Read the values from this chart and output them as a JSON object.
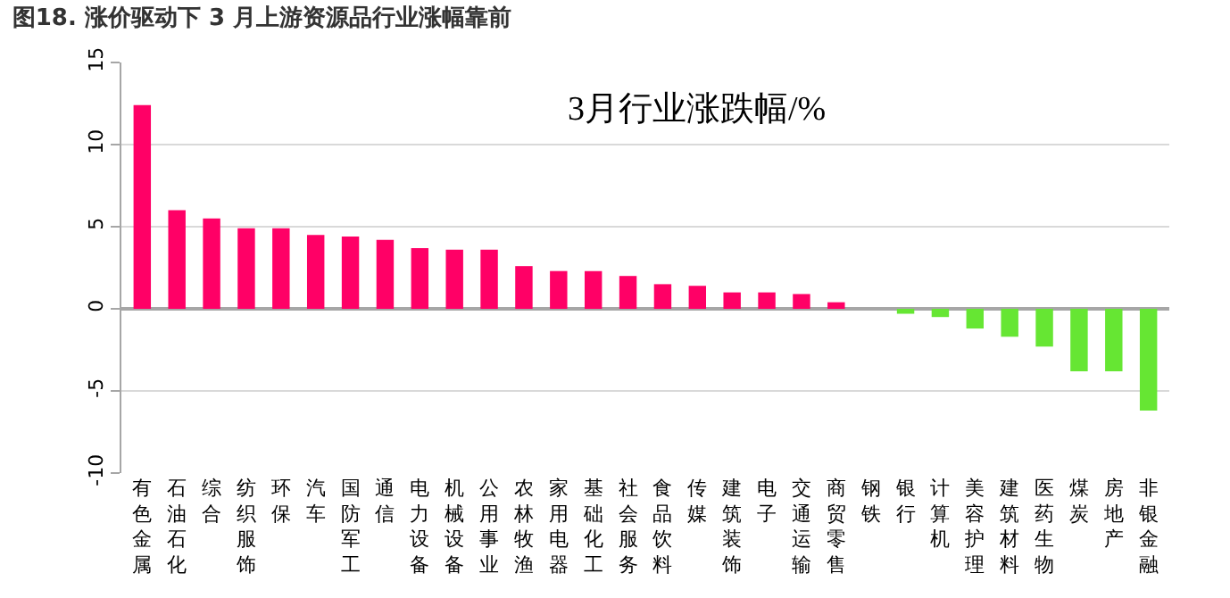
{
  "chart_data": {
    "type": "bar",
    "title": "图18. 涨价驱动下 3 月上游资源品行业涨幅靠前",
    "annotations": [
      "3月行业涨跌幅/%"
    ],
    "categories": [
      "有色金属",
      "石油石化",
      "综合",
      "纺织服饰",
      "环保",
      "汽车",
      "国防军工",
      "通信",
      "电力设备",
      "机械设备",
      "公用事业",
      "农林牧渔",
      "家用电器",
      "基础化工",
      "社会服务",
      "食品饮料",
      "传媒",
      "建筑装饰",
      "电子",
      "交通运输",
      "商贸零售",
      "钢铁",
      "银行",
      "计算机",
      "美容护理",
      "建筑材料",
      "医药生物",
      "煤炭",
      "房地产",
      "非银金融"
    ],
    "values": [
      12.4,
      6.0,
      5.5,
      4.9,
      4.9,
      4.5,
      4.4,
      4.2,
      3.7,
      3.6,
      3.6,
      2.6,
      2.3,
      2.3,
      2.0,
      1.5,
      1.4,
      1.0,
      1.0,
      0.9,
      0.4,
      0,
      -0.3,
      -0.5,
      -1.2,
      -1.7,
      -2.3,
      -3.8,
      -3.8,
      -6.2
    ],
    "colors": [
      "#ff0066",
      "#ff0066",
      "#ff0066",
      "#ff0066",
      "#ff0066",
      "#ff0066",
      "#ff0066",
      "#ff0066",
      "#ff0066",
      "#ff0066",
      "#ff0066",
      "#ff0066",
      "#ff0066",
      "#ff0066",
      "#ff0066",
      "#ff0066",
      "#ff0066",
      "#ff0066",
      "#ff0066",
      "#ff0066",
      "#ff0066",
      "#ff0066",
      "#66e633",
      "#66e633",
      "#66e633",
      "#66e633",
      "#66e633",
      "#66e633",
      "#66e633",
      "#66e633"
    ],
    "ylim": [
      -10,
      15
    ],
    "yticks": [
      -10,
      -5,
      0,
      5,
      10,
      15
    ],
    "grid": "y"
  }
}
